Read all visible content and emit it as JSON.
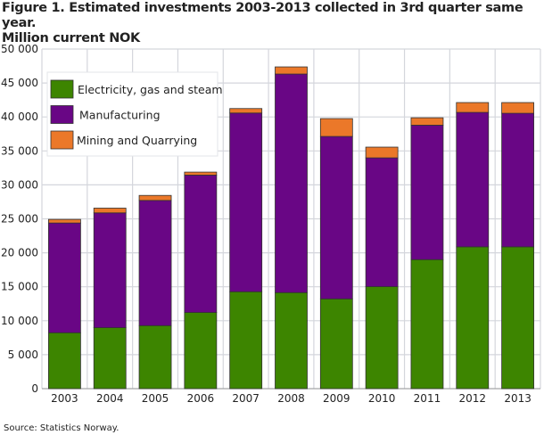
{
  "chart_data": {
    "type": "bar",
    "stacked": true,
    "title": "Figure 1. Estimated investments 2003-2013 collected in 3rd quarter same year.",
    "subtitle": "Million current NOK",
    "xlabel": "",
    "ylabel": "",
    "ylim": [
      0,
      50000
    ],
    "yticks": [
      "0",
      "5 000",
      "10 000",
      "15 000",
      "20 000",
      "25 000",
      "30 000",
      "35 000",
      "40 000",
      "45 000",
      "50 000"
    ],
    "grid": true,
    "legend_position": "top-left",
    "categories": [
      "2003",
      "2004",
      "2005",
      "2006",
      "2007",
      "2008",
      "2009",
      "2010",
      "2011",
      "2012",
      "2013"
    ],
    "series": [
      {
        "name": "Electricity, gas and steam",
        "color": "#3d8500",
        "values": [
          8230,
          8980,
          9280,
          11210,
          14270,
          14140,
          13220,
          15020,
          19000,
          20880,
          20880
        ]
      },
      {
        "name": "Manufacturing",
        "color": "#690685",
        "values": [
          16160,
          16900,
          18430,
          20230,
          26310,
          32180,
          23910,
          18960,
          19790,
          19790,
          19660
        ]
      },
      {
        "name": "Mining and Quarrying",
        "color": "#eb7829",
        "values": [
          530,
          700,
          740,
          440,
          660,
          1050,
          2630,
          1580,
          1090,
          1450,
          1580
        ]
      }
    ],
    "source": "Source: Statistics Norway."
  }
}
